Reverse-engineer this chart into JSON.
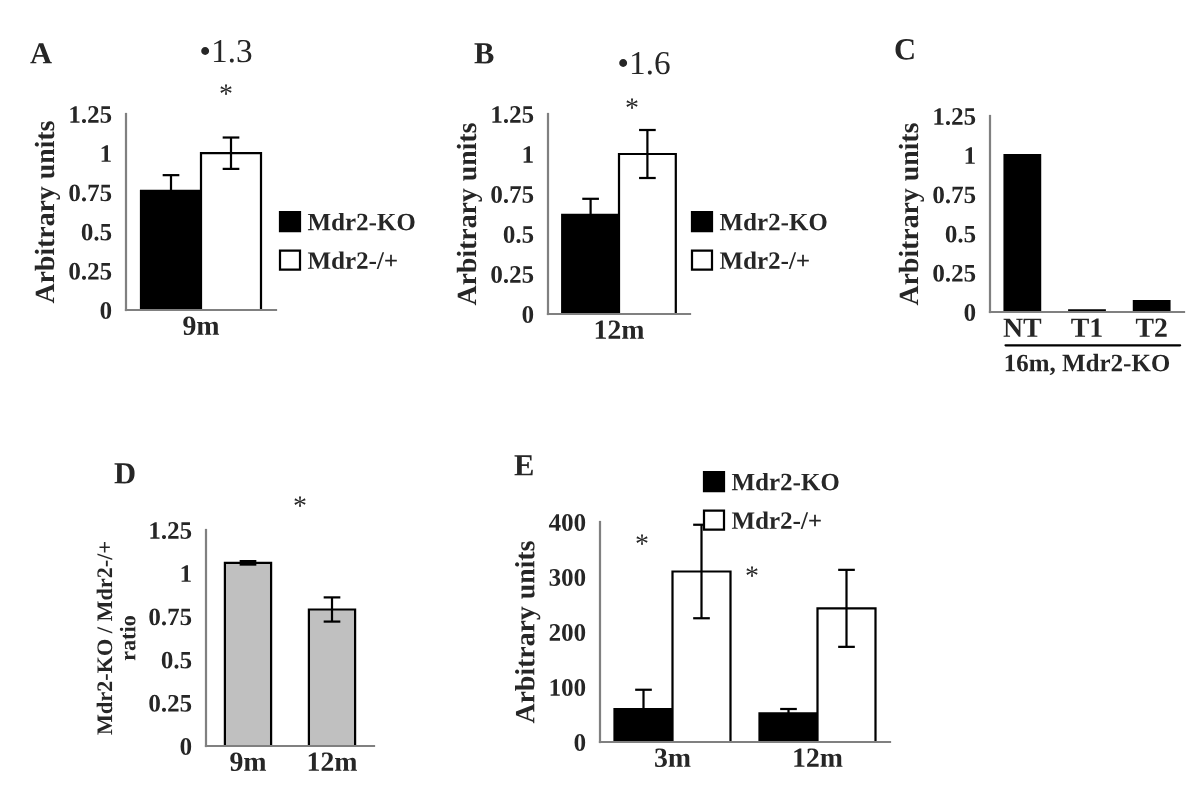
{
  "chart_data": [
    {
      "type": "bar",
      "title": "A",
      "categories": [
        "9m"
      ],
      "ylabel": "Arbitrary units",
      "ylim": [
        0,
        1.25
      ],
      "yticks": [
        0,
        0.25,
        0.5,
        0.75,
        1,
        1.25
      ],
      "legend": "right",
      "series": [
        {
          "name": "Mdr2-KO",
          "color": "#000000",
          "values": [
            0.76
          ],
          "errors": [
            0.1
          ]
        },
        {
          "name": "Mdr2-/+",
          "color": "#ffffff",
          "values": [
            1.0
          ],
          "errors": [
            0.1
          ]
        }
      ],
      "annotations": [
        "•1.3",
        "*"
      ]
    },
    {
      "type": "bar",
      "title": "B",
      "categories": [
        "12m"
      ],
      "ylabel": "Arbitrary units",
      "ylim": [
        0,
        1.25
      ],
      "yticks": [
        0,
        0.25,
        0.5,
        0.75,
        1,
        1.25
      ],
      "legend": "right",
      "series": [
        {
          "name": "Mdr2-KO",
          "color": "#000000",
          "values": [
            0.62
          ],
          "errors": [
            0.1
          ]
        },
        {
          "name": "Mdr2-/+",
          "color": "#ffffff",
          "values": [
            1.0
          ],
          "errors": [
            0.15
          ]
        }
      ],
      "annotations": [
        "•1.6",
        "*"
      ]
    },
    {
      "type": "bar",
      "title": "C",
      "categories": [
        "NT",
        "T1",
        "T2"
      ],
      "xlabel": "16m, Mdr2-KO",
      "ylabel": "Arbitrary units",
      "ylim": [
        0,
        1.25
      ],
      "yticks": [
        0,
        0.25,
        0.5,
        0.75,
        1,
        1.25
      ],
      "series": [
        {
          "color": "#000000",
          "values": [
            1.0,
            0.01,
            0.07
          ]
        }
      ]
    },
    {
      "type": "bar",
      "title": "D",
      "categories": [
        "9m",
        "12m"
      ],
      "ylabel": "Mdr2-KO / Mdr2-/+\nratio",
      "ylim": [
        0,
        1.25
      ],
      "yticks": [
        0,
        0.25,
        0.5,
        0.75,
        1,
        1.25
      ],
      "series": [
        {
          "color": "#c0c0c0",
          "values": [
            1.06,
            0.79
          ],
          "errors": [
            0.01,
            0.07
          ]
        }
      ],
      "annotations": [
        "*"
      ]
    },
    {
      "type": "bar",
      "title": "E",
      "categories": [
        "3m",
        "12m"
      ],
      "ylabel": "Arbitrary units",
      "ylim": [
        0,
        400
      ],
      "yticks": [
        0,
        100,
        200,
        300,
        400
      ],
      "legend": "top right",
      "series": [
        {
          "name": "Mdr2-KO",
          "color": "#000000",
          "values": [
            60,
            52
          ],
          "errors": [
            35,
            8
          ]
        },
        {
          "name": "Mdr2-/+",
          "color": "#ffffff",
          "values": [
            310,
            243
          ],
          "errors": [
            85,
            70
          ]
        }
      ],
      "annotations": [
        "*",
        "*"
      ]
    }
  ]
}
